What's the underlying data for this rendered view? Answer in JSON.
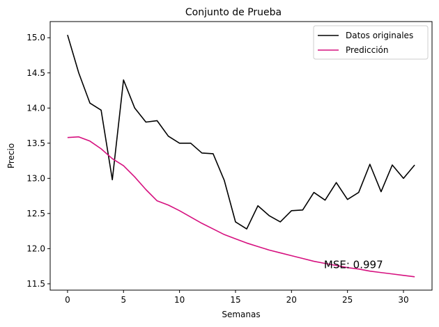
{
  "chart_data": {
    "type": "line",
    "title": "Conjunto de Prueba",
    "xlabel": "Semanas",
    "ylabel": "Precio",
    "xlim": [
      -1.55,
      32.55
    ],
    "ylim": [
      11.41,
      15.23
    ],
    "xticks": [
      0,
      5,
      10,
      15,
      20,
      25,
      30
    ],
    "xtick_labels": [
      "0",
      "5",
      "10",
      "15",
      "20",
      "25",
      "30"
    ],
    "yticks": [
      11.5,
      12.0,
      12.5,
      13.0,
      13.5,
      14.0,
      14.5,
      15.0
    ],
    "ytick_labels": [
      "11.5",
      "12.0",
      "12.5",
      "13.0",
      "13.5",
      "14.0",
      "14.5",
      "15.0"
    ],
    "grid": false,
    "legend_position": "top-right",
    "x": [
      0,
      1,
      2,
      3,
      4,
      5,
      6,
      7,
      8,
      9,
      10,
      11,
      12,
      13,
      14,
      15,
      16,
      17,
      18,
      19,
      20,
      21,
      22,
      23,
      24,
      25,
      26,
      27,
      28,
      29,
      30,
      31
    ],
    "series": [
      {
        "name": "Datos originales",
        "color": "#000000",
        "values": [
          15.04,
          14.5,
          14.07,
          13.97,
          12.98,
          14.4,
          14.0,
          13.8,
          13.82,
          13.6,
          13.5,
          13.5,
          13.36,
          13.35,
          12.97,
          12.38,
          12.28,
          12.61,
          12.47,
          12.38,
          12.54,
          12.55,
          12.8,
          12.69,
          12.94,
          12.7,
          12.8,
          13.2,
          12.81,
          13.19,
          13.0,
          13.19
        ]
      },
      {
        "name": "Predicción",
        "color": "#d6107f",
        "values": [
          13.58,
          13.59,
          13.53,
          13.42,
          13.28,
          13.18,
          13.02,
          12.84,
          12.68,
          12.62,
          12.54,
          12.45,
          12.36,
          12.28,
          12.2,
          12.14,
          12.08,
          12.03,
          11.98,
          11.94,
          11.9,
          11.86,
          11.82,
          11.79,
          11.76,
          11.73,
          11.71,
          11.68,
          11.66,
          11.64,
          11.62,
          11.6
        ]
      }
    ],
    "annotation": {
      "text": "MSE: 0.997",
      "x": 22.9,
      "y": 11.72
    }
  }
}
